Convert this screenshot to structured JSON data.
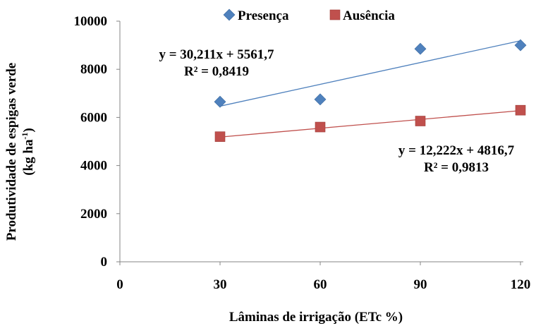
{
  "chart_data": {
    "type": "scatter",
    "xlabel": "Lâminas  de irrigação (ETc %)",
    "ylabel_line1": "Produtividade  de espigas verde",
    "ylabel_line2_main": "(kg ha",
    "ylabel_line2_sup": "-1",
    "ylabel_line2_end": ")",
    "xlim": [
      0,
      120
    ],
    "ylim": [
      0,
      10000
    ],
    "x_ticks": [
      0,
      30,
      60,
      90,
      120
    ],
    "y_ticks": [
      0,
      2000,
      4000,
      6000,
      8000,
      10000
    ],
    "grid": false,
    "legend_position": "top",
    "series": [
      {
        "name": "Presença",
        "marker": "diamond",
        "color": "#4F81BD",
        "x": [
          30,
          60,
          90,
          120
        ],
        "y": [
          6650,
          6750,
          8850,
          9000
        ],
        "trendline": {
          "slope": 30.211,
          "intercept": 5561.7,
          "equation": "y = 30,211x + 5561,7",
          "r2": "R² = 0,8419"
        }
      },
      {
        "name": "Ausência",
        "marker": "square",
        "color": "#C0504D",
        "x": [
          30,
          60,
          90,
          120
        ],
        "y": [
          5200,
          5600,
          5850,
          6300
        ],
        "trendline": {
          "slope": 12.222,
          "intercept": 4816.7,
          "equation": "y = 12,222x + 4816,7",
          "r2": "R² = 0,9813"
        }
      }
    ]
  }
}
